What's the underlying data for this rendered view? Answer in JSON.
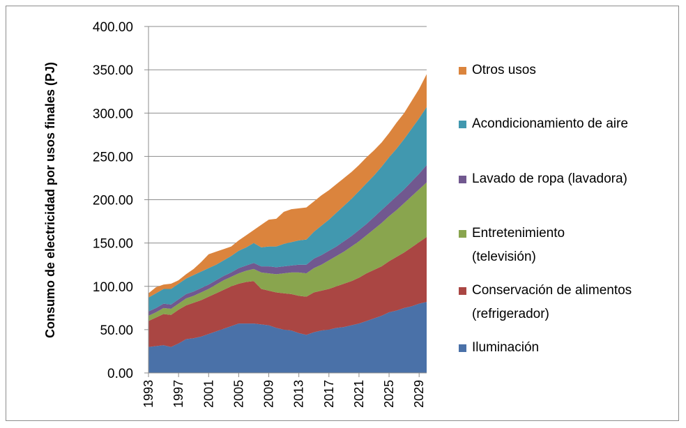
{
  "chart_data": {
    "type": "area",
    "y_label": "Consumo de electricidad por usos finales (PJ)",
    "x": [
      1993,
      1994,
      1995,
      1996,
      1997,
      1998,
      1999,
      2000,
      2001,
      2002,
      2003,
      2004,
      2005,
      2006,
      2007,
      2008,
      2009,
      2010,
      2011,
      2012,
      2013,
      2014,
      2015,
      2016,
      2017,
      2018,
      2019,
      2020,
      2021,
      2022,
      2023,
      2024,
      2025,
      2026,
      2027,
      2028,
      2029,
      2030
    ],
    "xlim": [
      1993,
      2030
    ],
    "xticks": [
      1993,
      1997,
      2001,
      2005,
      2009,
      2013,
      2017,
      2021,
      2025,
      2029
    ],
    "ylim": [
      0,
      400
    ],
    "yticks": [
      {
        "value": 0,
        "label": "0.00"
      },
      {
        "value": 50,
        "label": "50.00"
      },
      {
        "value": 100,
        "label": "100.00"
      },
      {
        "value": 150,
        "label": "150.00"
      },
      {
        "value": 200,
        "label": "200.00"
      },
      {
        "value": 250,
        "label": "250.00"
      },
      {
        "value": 300,
        "label": "300.00"
      },
      {
        "value": 350,
        "label": "350.00"
      },
      {
        "value": 400,
        "label": "400.00"
      }
    ],
    "grid": true,
    "stacked": true,
    "legend": "right",
    "series": [
      {
        "name": "Iluminación",
        "color": "#4a71a8",
        "values": [
          30,
          31,
          32,
          30,
          34,
          39,
          40,
          42,
          45,
          48,
          51,
          54,
          57,
          57,
          57,
          56,
          55,
          52,
          50,
          49,
          46,
          44,
          47,
          49,
          50,
          52,
          53,
          55,
          57,
          60,
          63,
          66,
          70,
          72,
          75,
          77,
          80,
          82
        ]
      },
      {
        "name": "Conservación de alimentos (refrigerador)",
        "color": "#aa4643",
        "values": [
          30,
          33,
          36,
          37,
          39,
          39,
          41,
          42,
          43,
          44,
          45,
          46,
          46,
          48,
          49,
          41,
          40,
          41,
          42,
          42,
          43,
          44,
          46,
          46,
          47,
          48,
          50,
          51,
          53,
          55,
          56,
          57,
          59,
          62,
          64,
          68,
          71,
          75
        ]
      },
      {
        "name": "Entretenimiento (televisión)",
        "color": "#89a54e",
        "values": [
          6,
          6,
          7,
          7,
          7,
          8,
          8,
          9,
          9,
          10,
          11,
          11,
          12,
          13,
          14,
          19,
          20,
          21,
          23,
          25,
          27,
          27,
          28,
          30,
          33,
          35,
          37,
          40,
          42,
          44,
          47,
          50,
          52,
          54,
          57,
          59,
          61,
          63
        ]
      },
      {
        "name": "Lavado de ropa (lavadora)",
        "color": "#71588f",
        "values": [
          5,
          5,
          5,
          5,
          5,
          5,
          5,
          5,
          5,
          5,
          5,
          5,
          6,
          6,
          7,
          7,
          8,
          8,
          8,
          8,
          9,
          10,
          11,
          11,
          11,
          11,
          12,
          12,
          13,
          13,
          14,
          15,
          15,
          16,
          16,
          17,
          18,
          20
        ]
      },
      {
        "name": "Acondicionamiento de aire",
        "color": "#4198af",
        "values": [
          16,
          17,
          17,
          18,
          18,
          18,
          19,
          19,
          19,
          18,
          18,
          19,
          20,
          21,
          23,
          22,
          23,
          24,
          26,
          27,
          28,
          29,
          31,
          34,
          36,
          39,
          41,
          43,
          45,
          47,
          48,
          50,
          53,
          55,
          58,
          61,
          64,
          67
        ]
      },
      {
        "name": "Otros usos",
        "color": "#db843d",
        "values": [
          5,
          7,
          5,
          6,
          4,
          5,
          7,
          11,
          16,
          15,
          13,
          11,
          12,
          14,
          15,
          26,
          31,
          32,
          37,
          38,
          37,
          37,
          35,
          35,
          34,
          33,
          32,
          31,
          30,
          30,
          29,
          28,
          28,
          30,
          30,
          32,
          34,
          38
        ]
      }
    ]
  }
}
